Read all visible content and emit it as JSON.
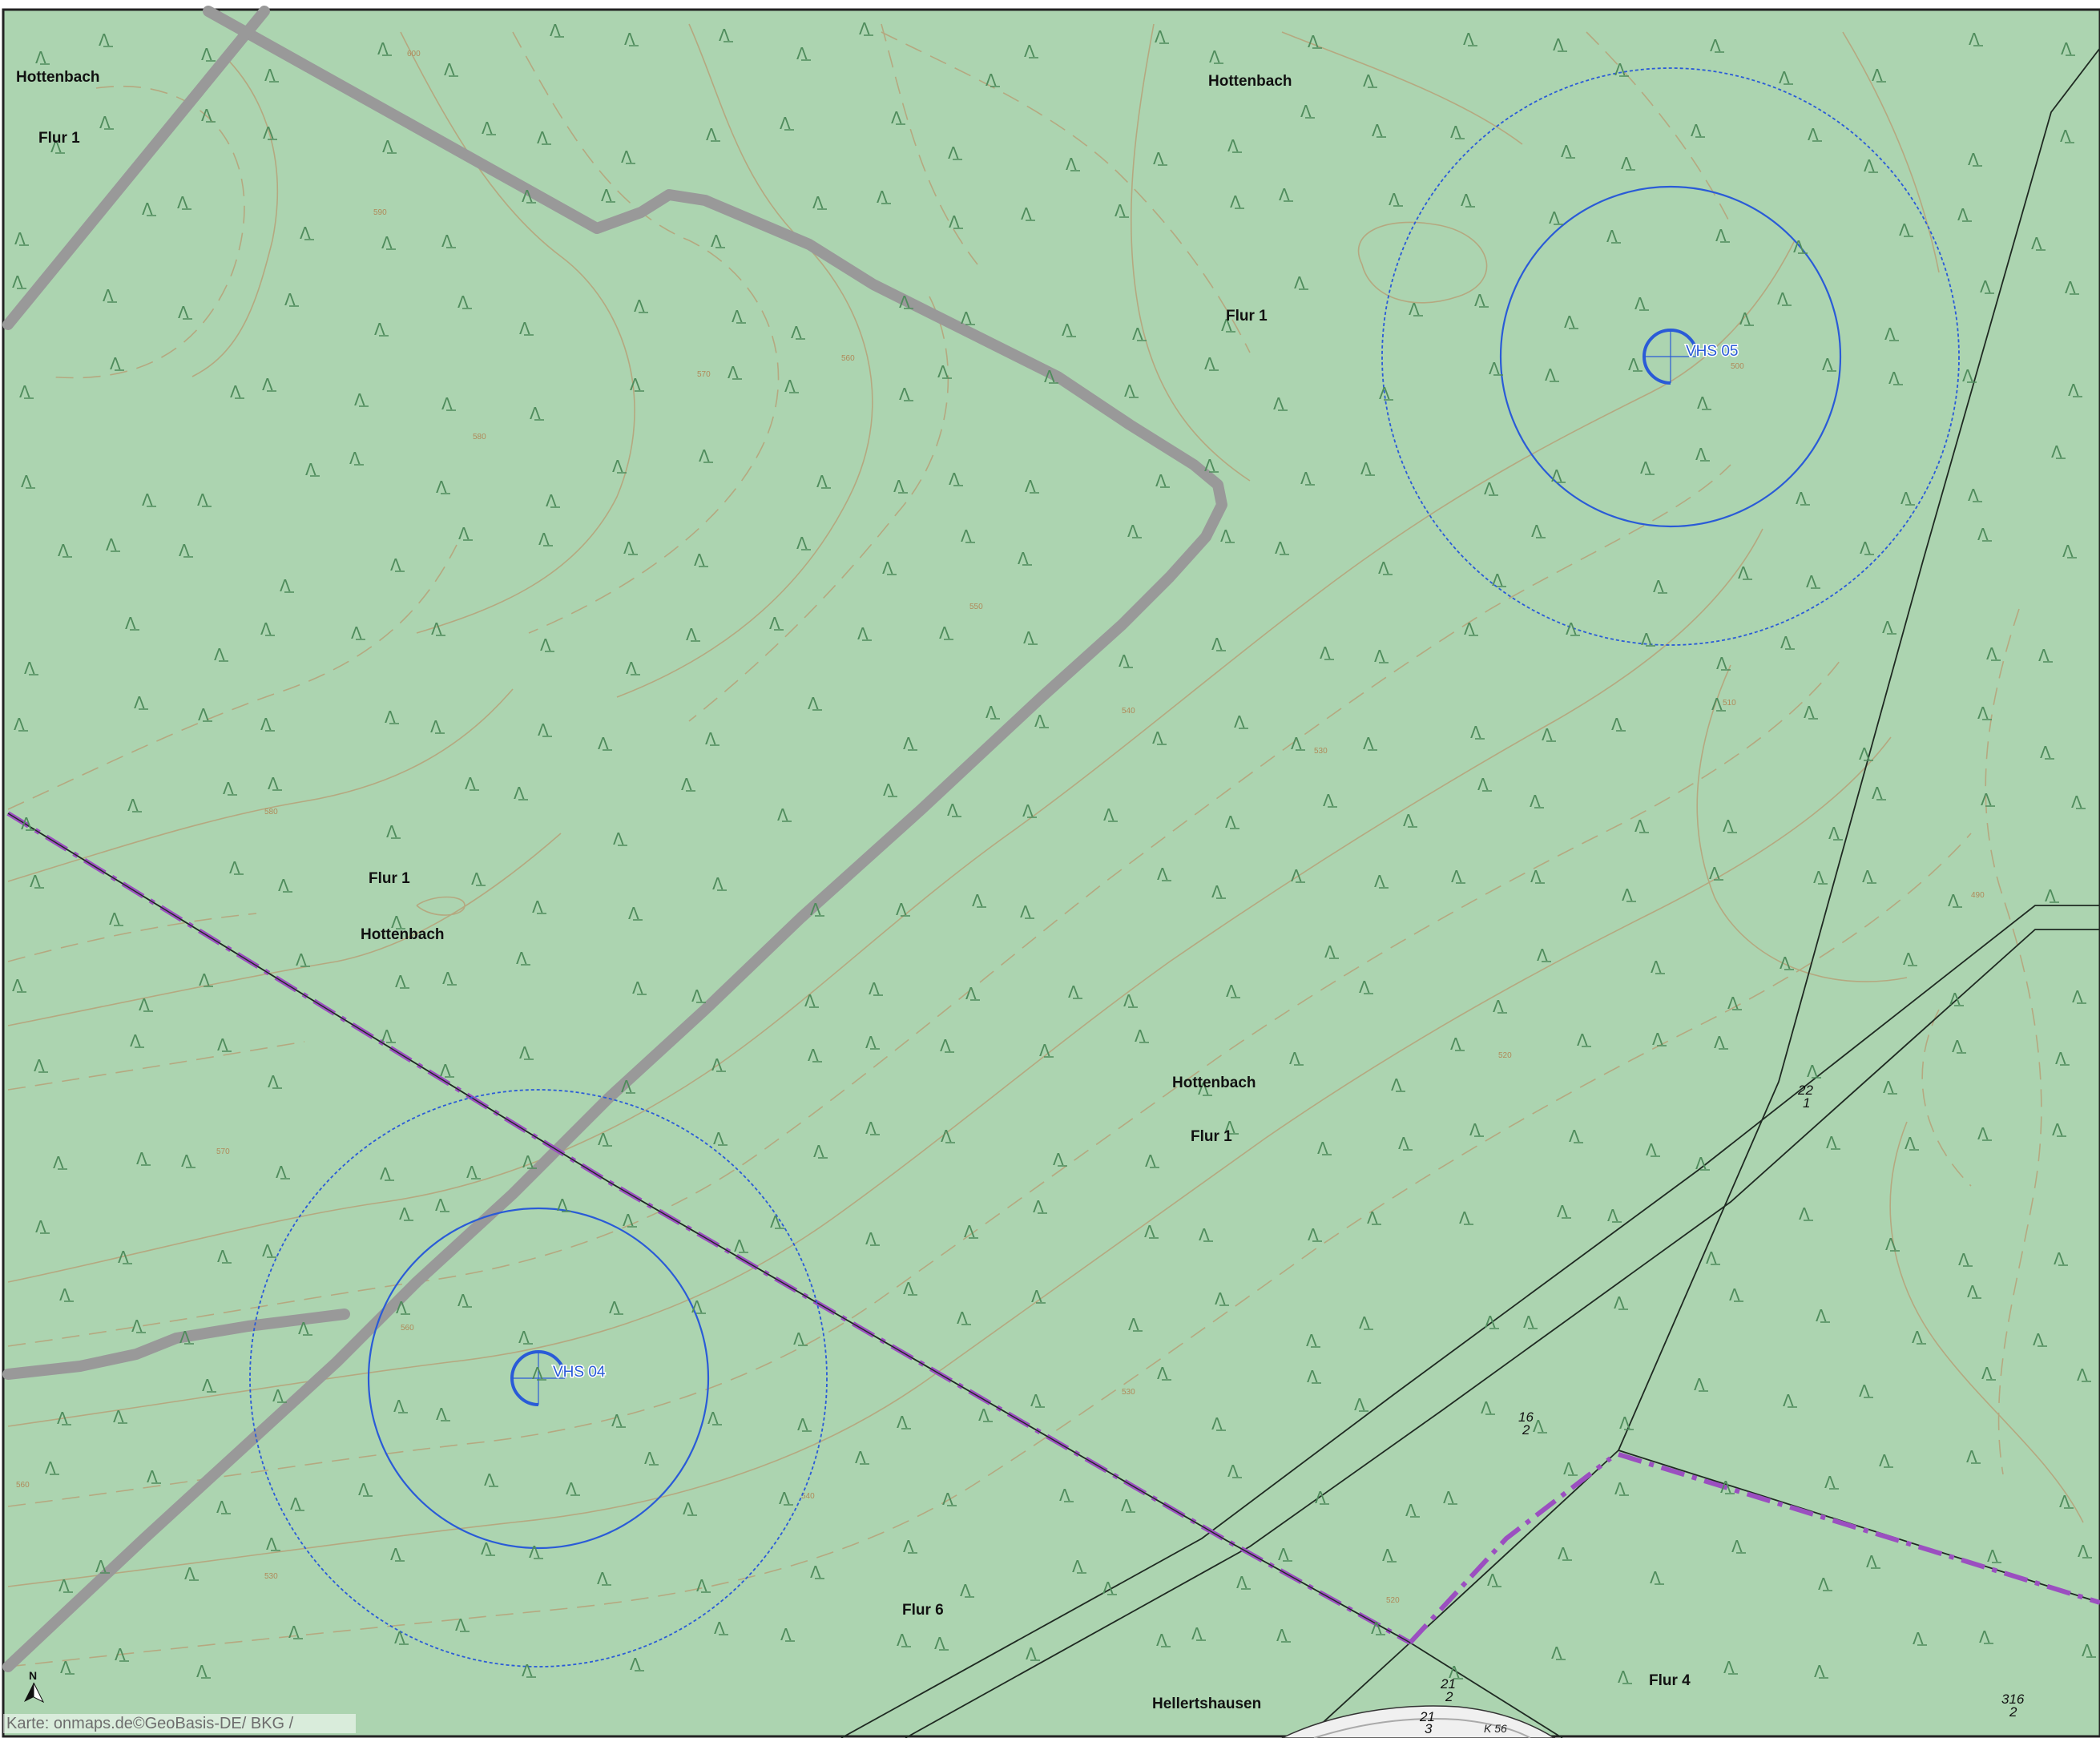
{
  "map": {
    "background_color": "#acd4b0",
    "attribution": "Karte: onmaps.de©GeoBasis-DE/ BKG /",
    "north_arrow_label": "N"
  },
  "place_labels": [
    {
      "id": "hottenbach-nw",
      "text": "Hottenbach"
    },
    {
      "id": "flur1-nw",
      "text": "Flur 1"
    },
    {
      "id": "hottenbach-n",
      "text": "Hottenbach"
    },
    {
      "id": "flur1-n",
      "text": "Flur 1"
    },
    {
      "id": "flur1-w",
      "text": "Flur 1"
    },
    {
      "id": "hottenbach-w",
      "text": "Hottenbach"
    },
    {
      "id": "hottenbach-c",
      "text": "Hottenbach"
    },
    {
      "id": "flur1-c",
      "text": "Flur 1"
    },
    {
      "id": "flur6",
      "text": "Flur 6"
    },
    {
      "id": "hellertshausen",
      "text": "Hellertshausen"
    },
    {
      "id": "flur4",
      "text": "Flur 4"
    }
  ],
  "parcel_labels": [
    {
      "id": "p22-1",
      "numerator": "22",
      "denominator": "1"
    },
    {
      "id": "p16-2",
      "numerator": "16",
      "denominator": "2"
    },
    {
      "id": "p21-2",
      "numerator": "21",
      "denominator": "2"
    },
    {
      "id": "p21-3",
      "numerator": "21",
      "denominator": "3"
    },
    {
      "id": "p316-2",
      "numerator": "316",
      "denominator": "2"
    }
  ],
  "road_label": "K 56",
  "sites": [
    {
      "id": "vhs05",
      "label": "VHS 05"
    },
    {
      "id": "vhs04",
      "label": "VHS 04"
    }
  ],
  "contour_labels": [
    "600",
    "590",
    "580",
    "570",
    "560",
    "550",
    "540",
    "530",
    "520",
    "510",
    "500",
    "490"
  ],
  "colors": {
    "forest": "#acd4b0",
    "path_gray": "#999999",
    "boundary_purple": "#9b4fc0",
    "site_blue": "#2a5bd7",
    "contour": "#b99a70",
    "parcel_line": "#1f2a22",
    "tree_symbol": "#4f8c5c"
  }
}
